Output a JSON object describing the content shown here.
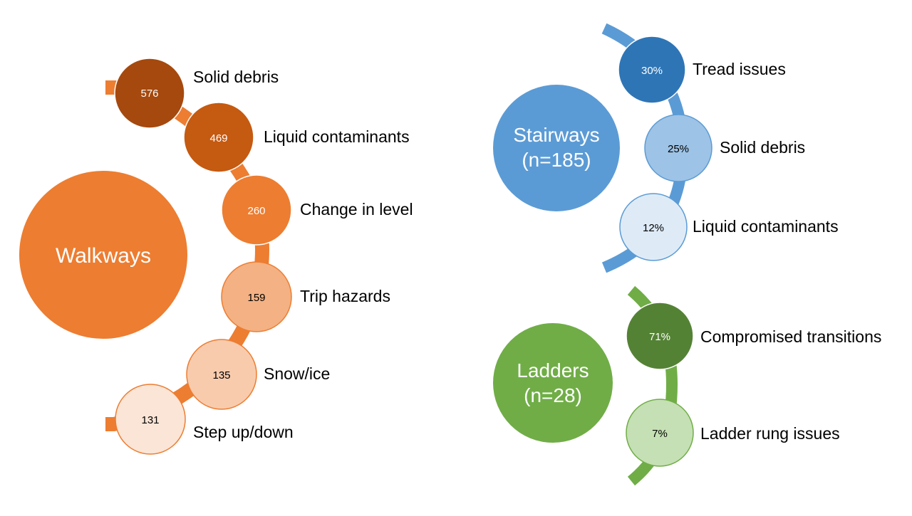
{
  "colors": {
    "walkways_arc": "#ED7D31",
    "stairways_arc": "#5B9BD5",
    "ladders_arc": "#70AD47"
  },
  "walkways": {
    "hub_label": "Walkways",
    "hub_color": "#ED7D31",
    "items": [
      {
        "label": "Solid debris",
        "value": "576",
        "fill": "#A5490E",
        "text_color": "#FFFFFF",
        "stroke": "#ffffff"
      },
      {
        "label": "Liquid contaminants",
        "value": "469",
        "fill": "#C55A11",
        "text_color": "#FFFFFF",
        "stroke": "#ffffff"
      },
      {
        "label": "Change in level",
        "value": "260",
        "fill": "#ED7D31",
        "text_color": "#FFFFFF",
        "stroke": "#ffffff"
      },
      {
        "label": "Trip hazards",
        "value": "159",
        "fill": "#F4B183",
        "text_color": "#000000",
        "stroke": "#ED7D31"
      },
      {
        "label": "Snow/ice",
        "value": "135",
        "fill": "#F8CBAD",
        "text_color": "#000000",
        "stroke": "#ED7D31"
      },
      {
        "label": "Step up/down",
        "value": "131",
        "fill": "#FBE5D6",
        "text_color": "#000000",
        "stroke": "#ED7D31"
      }
    ]
  },
  "stairways": {
    "hub_label_line1": "Stairways",
    "hub_label_line2": "(n=185)",
    "hub_color": "#5B9BD5",
    "items": [
      {
        "label": "Tread issues",
        "value": "30%",
        "fill": "#2E75B6",
        "text_color": "#FFFFFF",
        "stroke": "#ffffff"
      },
      {
        "label": "Solid debris",
        "value": "25%",
        "fill": "#9DC3E6",
        "text_color": "#000000",
        "stroke": "#5B9BD5"
      },
      {
        "label": "Liquid contaminants",
        "value": "12%",
        "fill": "#DEEBF7",
        "text_color": "#000000",
        "stroke": "#5B9BD5"
      }
    ]
  },
  "ladders": {
    "hub_label_line1": "Ladders",
    "hub_label_line2": "(n=28)",
    "hub_color": "#70AD47",
    "items": [
      {
        "label": "Compromised transitions",
        "value": "71%",
        "fill": "#548235",
        "text_color": "#FFFFFF",
        "stroke": "#ffffff"
      },
      {
        "label": "Ladder rung issues",
        "value": "7%",
        "fill": "#C5E0B4",
        "text_color": "#000000",
        "stroke": "#70AD47"
      }
    ]
  }
}
